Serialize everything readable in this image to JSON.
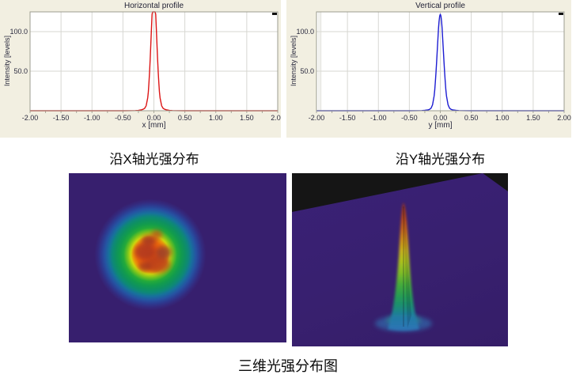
{
  "captions": {
    "x_distribution": "沿X轴光强分布",
    "y_distribution": "沿Y轴光强分布",
    "three_d": "三维光强分布图"
  },
  "colors": {
    "panel_bg": "#f2efe1",
    "plot_bg": "#ffffff",
    "grid": "#d7d7d2",
    "frame": "#9c9c90",
    "minor_tick": "#a8a89a",
    "tick_text": "#2a2a3e",
    "title_text": "#1f1f33",
    "horizontal_curve_red": "#dc1414",
    "vertical_curve_blue": "#1d1dd2",
    "beam_bg_purple": "#371f6e",
    "surface_bg_black": "#151515",
    "surface_plane_purple": "#38206f"
  },
  "chart_data": [
    {
      "type": "line",
      "title": "Horizontal profile",
      "xlabel": "x [mm]",
      "ylabel": "Intensity [levels]",
      "xlim": [
        -2.0,
        2.0
      ],
      "ylim": [
        0,
        125
      ],
      "xticks": [
        "-2.00",
        "-1.50",
        "-1.00",
        "-0.50",
        "0.00",
        "0.50",
        "1.00",
        "1.50",
        "2.00"
      ],
      "yticks": [
        "50.0",
        "100.0"
      ],
      "minor_tick_step_mm": 0.25,
      "grid": true,
      "legend": "none",
      "line_color": "#dc1414",
      "peak": {
        "center_mm": 0.0,
        "fwhm_mm": 0.11,
        "clipped_at_plot_top": true
      },
      "points": [
        [
          -2,
          0
        ],
        [
          -1.5,
          0
        ],
        [
          -1,
          0
        ],
        [
          -0.5,
          0
        ],
        [
          -0.3,
          0.15
        ],
        [
          -0.25,
          0.45
        ],
        [
          -0.2,
          1.2
        ],
        [
          -0.175,
          1.8
        ],
        [
          -0.15,
          3
        ],
        [
          -0.125,
          6.2
        ],
        [
          -0.1,
          16.3
        ],
        [
          -0.09,
          23.9
        ],
        [
          -0.08,
          34.5
        ],
        [
          -0.07,
          48.1
        ],
        [
          -0.06,
          64.7
        ],
        [
          -0.05,
          83.7
        ],
        [
          -0.04,
          103.2
        ],
        [
          -0.03,
          121.9
        ],
        [
          -0.02,
          137.3
        ],
        [
          -0.01,
          147.4
        ],
        [
          0,
          151
        ],
        [
          0.01,
          147.4
        ],
        [
          0.02,
          137.3
        ],
        [
          0.03,
          121.9
        ],
        [
          0.04,
          103.2
        ],
        [
          0.05,
          83.7
        ],
        [
          0.06,
          64.7
        ],
        [
          0.07,
          48.1
        ],
        [
          0.08,
          34.5
        ],
        [
          0.09,
          23.9
        ],
        [
          0.1,
          16.3
        ],
        [
          0.125,
          6.2
        ],
        [
          0.15,
          3
        ],
        [
          0.175,
          1.8
        ],
        [
          0.2,
          1.2
        ],
        [
          0.25,
          0.45
        ],
        [
          0.3,
          0.15
        ],
        [
          0.5,
          0
        ],
        [
          1,
          0
        ],
        [
          1.5,
          0
        ],
        [
          2,
          0
        ]
      ]
    },
    {
      "type": "line",
      "title": "Vertical profile",
      "xlabel": "y [mm]",
      "ylabel": "Intensity [levels]",
      "xlim": [
        -2.0,
        2.0
      ],
      "ylim": [
        0,
        125
      ],
      "xticks": [
        "-2.00",
        "-1.50",
        "-1.00",
        "-0.50",
        "0.00",
        "0.50",
        "1.00",
        "1.50",
        "2.00"
      ],
      "yticks": [
        "50.0",
        "100.0"
      ],
      "minor_tick_step_mm": 0.25,
      "grid": true,
      "legend": "none",
      "line_color": "#1d1dd2",
      "cursor_lines_mm": [
        -1.96,
        -1.93
      ],
      "peak": {
        "center_mm": 0.0,
        "fwhm_mm": 0.12,
        "clipped_at_plot_top": false
      },
      "points": [
        [
          -2,
          0
        ],
        [
          -1.5,
          0
        ],
        [
          -1,
          0
        ],
        [
          -0.5,
          0
        ],
        [
          -0.3,
          0.2
        ],
        [
          -0.25,
          0.5
        ],
        [
          -0.2,
          1
        ],
        [
          -0.175,
          1.7
        ],
        [
          -0.15,
          3.2
        ],
        [
          -0.125,
          7.5
        ],
        [
          -0.1,
          18.8
        ],
        [
          -0.09,
          26.5
        ],
        [
          -0.08,
          36
        ],
        [
          -0.07,
          47.7
        ],
        [
          -0.06,
          60.9
        ],
        [
          -0.05,
          75.3
        ],
        [
          -0.04,
          89.5
        ],
        [
          -0.03,
          103.9
        ],
        [
          -0.02,
          112.9
        ],
        [
          -0.01,
          119.7
        ],
        [
          0,
          122
        ],
        [
          0.01,
          119.7
        ],
        [
          0.02,
          112.9
        ],
        [
          0.03,
          103.9
        ],
        [
          0.04,
          89.5
        ],
        [
          0.05,
          75.3
        ],
        [
          0.06,
          60.9
        ],
        [
          0.07,
          47.7
        ],
        [
          0.08,
          36
        ],
        [
          0.09,
          26.5
        ],
        [
          0.1,
          18.8
        ],
        [
          0.125,
          7.5
        ],
        [
          0.15,
          3.2
        ],
        [
          0.175,
          1.7
        ],
        [
          0.2,
          1
        ],
        [
          0.25,
          0.5
        ],
        [
          0.3,
          0.2
        ],
        [
          0.5,
          0
        ],
        [
          1,
          0
        ],
        [
          1.5,
          0
        ],
        [
          2,
          0
        ]
      ]
    }
  ],
  "images": {
    "beam_2d": {
      "description": "2D laser beam intensity spot, rainbow colormap on purple background, mottled red-orange core",
      "colormap": [
        "#371f6e",
        "#2c3c92",
        "#2553a2",
        "#17719c",
        "#0e8878",
        "#129c4c",
        "#24aa3a",
        "#77c41e",
        "#cdd90e",
        "#eb9b0b",
        "#ee6c0c",
        "#e35110",
        "#b13a20"
      ]
    },
    "beam_3d": {
      "description": "3D intensity surface: narrow sharp peak on flat purple plane, black background",
      "peak_colormap": [
        "#2f74b8",
        "#1a8c74",
        "#45ab3b",
        "#adc11e",
        "#cf8f18",
        "#c14c16",
        "#8e2f1e"
      ]
    }
  }
}
